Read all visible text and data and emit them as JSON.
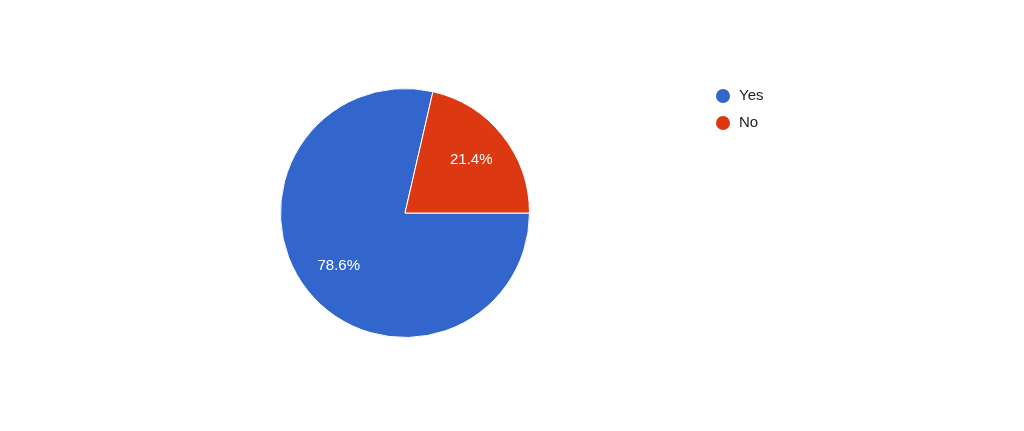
{
  "chart_data": {
    "type": "pie",
    "categories": [
      "Yes",
      "No"
    ],
    "values": [
      78.6,
      21.4
    ],
    "colors": [
      "#3366cc",
      "#dc3912"
    ],
    "value_labels": [
      "78.6%",
      "21.4%"
    ],
    "legend": "top right"
  }
}
